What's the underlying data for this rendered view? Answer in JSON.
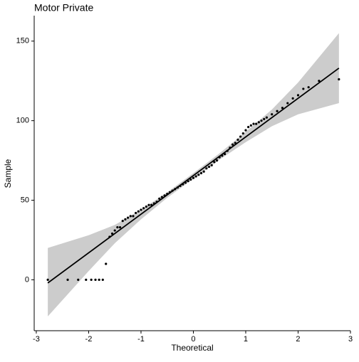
{
  "chart_data": {
    "type": "scatter",
    "title": "Motor Private",
    "xlabel": "Theoretical",
    "ylabel": "Sample",
    "xlim": [
      -3.04,
      3.0
    ],
    "ylim": [
      -32,
      166
    ],
    "xticks": [
      -3,
      -2,
      -1,
      0,
      1,
      2,
      3
    ],
    "yticks": [
      0,
      50,
      100,
      150
    ],
    "grid": false,
    "series": [
      {
        "name": "Motor Private",
        "color": "#000000",
        "x": [
          -2.78,
          -2.4,
          -2.2,
          -2.05,
          -1.95,
          -1.87,
          -1.8,
          -1.73,
          -1.67,
          -1.6,
          -1.55,
          -1.5,
          -1.45,
          -1.4,
          -1.35,
          -1.3,
          -1.25,
          -1.2,
          -1.15,
          -1.1,
          -1.05,
          -1.0,
          -0.95,
          -0.9,
          -0.85,
          -0.8,
          -0.75,
          -0.7,
          -0.65,
          -0.6,
          -0.55,
          -0.5,
          -0.45,
          -0.4,
          -0.35,
          -0.3,
          -0.25,
          -0.2,
          -0.15,
          -0.1,
          -0.05,
          0,
          0.05,
          0.1,
          0.15,
          0.2,
          0.25,
          0.3,
          0.35,
          0.4,
          0.45,
          0.5,
          0.55,
          0.6,
          0.65,
          0.7,
          0.75,
          0.8,
          0.85,
          0.9,
          0.95,
          1.0,
          1.05,
          1.1,
          1.15,
          1.2,
          1.25,
          1.3,
          1.35,
          1.4,
          1.5,
          1.6,
          1.7,
          1.8,
          1.9,
          2.0,
          2.1,
          2.2,
          2.4,
          2.78
        ],
        "values": [
          0,
          0,
          0,
          0,
          0,
          0,
          0,
          0,
          10,
          27,
          29,
          31,
          33,
          33,
          37,
          38,
          39,
          40,
          40,
          42,
          43,
          44,
          45,
          46,
          47,
          47,
          48,
          49,
          51,
          52,
          53,
          54,
          55,
          56,
          57,
          58,
          59,
          60,
          61,
          62,
          63,
          64,
          65,
          66,
          67,
          68,
          70,
          71,
          72,
          74,
          75,
          77,
          78,
          79,
          81,
          83,
          85,
          86,
          88,
          90,
          92,
          94,
          96,
          97,
          98,
          98,
          99,
          100,
          101,
          102,
          104,
          106,
          108,
          111,
          114,
          116,
          120,
          121,
          125,
          126
        ]
      }
    ],
    "line": {
      "color": "#000000",
      "x": [
        -2.78,
        2.78
      ],
      "values": [
        -2,
        133
      ]
    },
    "band": {
      "color": "#cccccc",
      "x": [
        -2.78,
        -2,
        -1.5,
        -1,
        -0.5,
        0,
        0.5,
        1,
        1.5,
        2,
        2.78
      ],
      "upper": [
        20,
        28,
        34.5,
        44,
        55,
        67,
        79.5,
        93,
        107,
        124,
        155
      ],
      "lower": [
        -23,
        5.5,
        23,
        38,
        51.5,
        63.5,
        75.5,
        86.5,
        96.5,
        104,
        111
      ]
    }
  }
}
